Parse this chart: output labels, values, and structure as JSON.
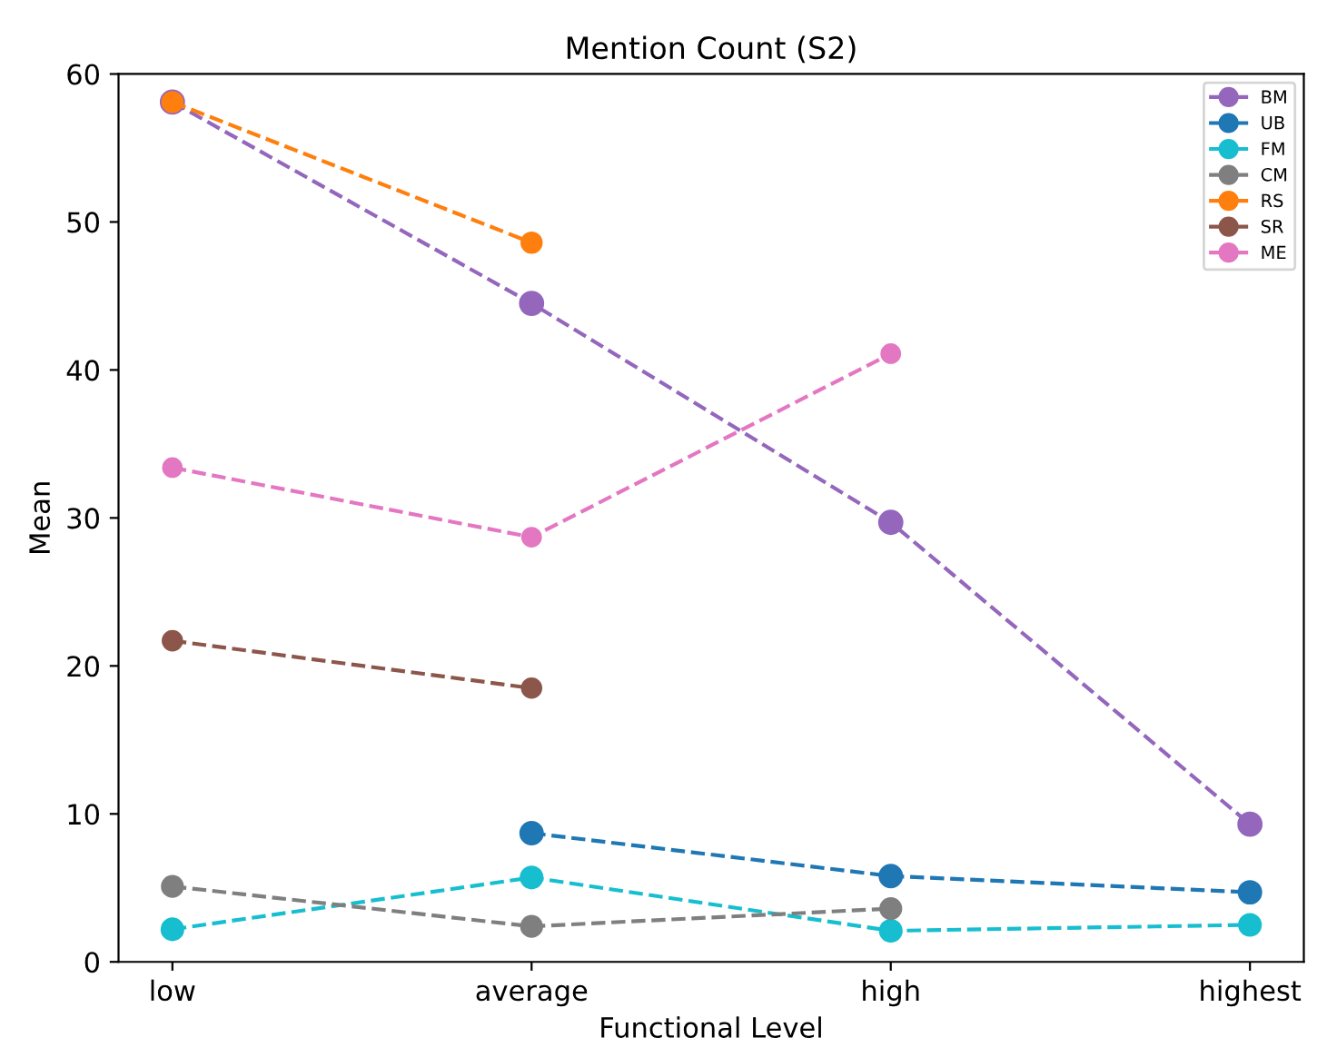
{
  "chart_data": {
    "type": "line",
    "title": "Mention Count (S2)",
    "xlabel": "Functional Level",
    "ylabel": "Mean",
    "categories": [
      "low",
      "average",
      "high",
      "highest"
    ],
    "series": [
      {
        "name": "BM",
        "color": "#9467bd",
        "values": [
          58.1,
          44.5,
          29.7,
          9.3
        ]
      },
      {
        "name": "UB",
        "color": "#1f77b4",
        "values": [
          null,
          8.7,
          5.8,
          4.7
        ]
      },
      {
        "name": "FM",
        "color": "#17becf",
        "values": [
          2.2,
          5.7,
          2.1,
          2.5
        ]
      },
      {
        "name": "CM",
        "color": "#7f7f7f",
        "values": [
          5.1,
          2.4,
          3.6,
          null
        ]
      },
      {
        "name": "RS",
        "color": "#ff7f0e",
        "values": [
          58.1,
          48.6,
          null,
          null
        ]
      },
      {
        "name": "SR",
        "color": "#8c564b",
        "values": [
          21.7,
          18.5,
          null,
          null
        ]
      },
      {
        "name": "ME",
        "color": "#e377c2",
        "values": [
          33.4,
          28.7,
          41.1,
          null
        ]
      }
    ],
    "ylim": [
      0,
      60
    ],
    "yticks": [
      0,
      10,
      20,
      30,
      40,
      50,
      60
    ],
    "grid": false,
    "legend": "top right",
    "marker": "circle",
    "line_style": "dashed"
  }
}
